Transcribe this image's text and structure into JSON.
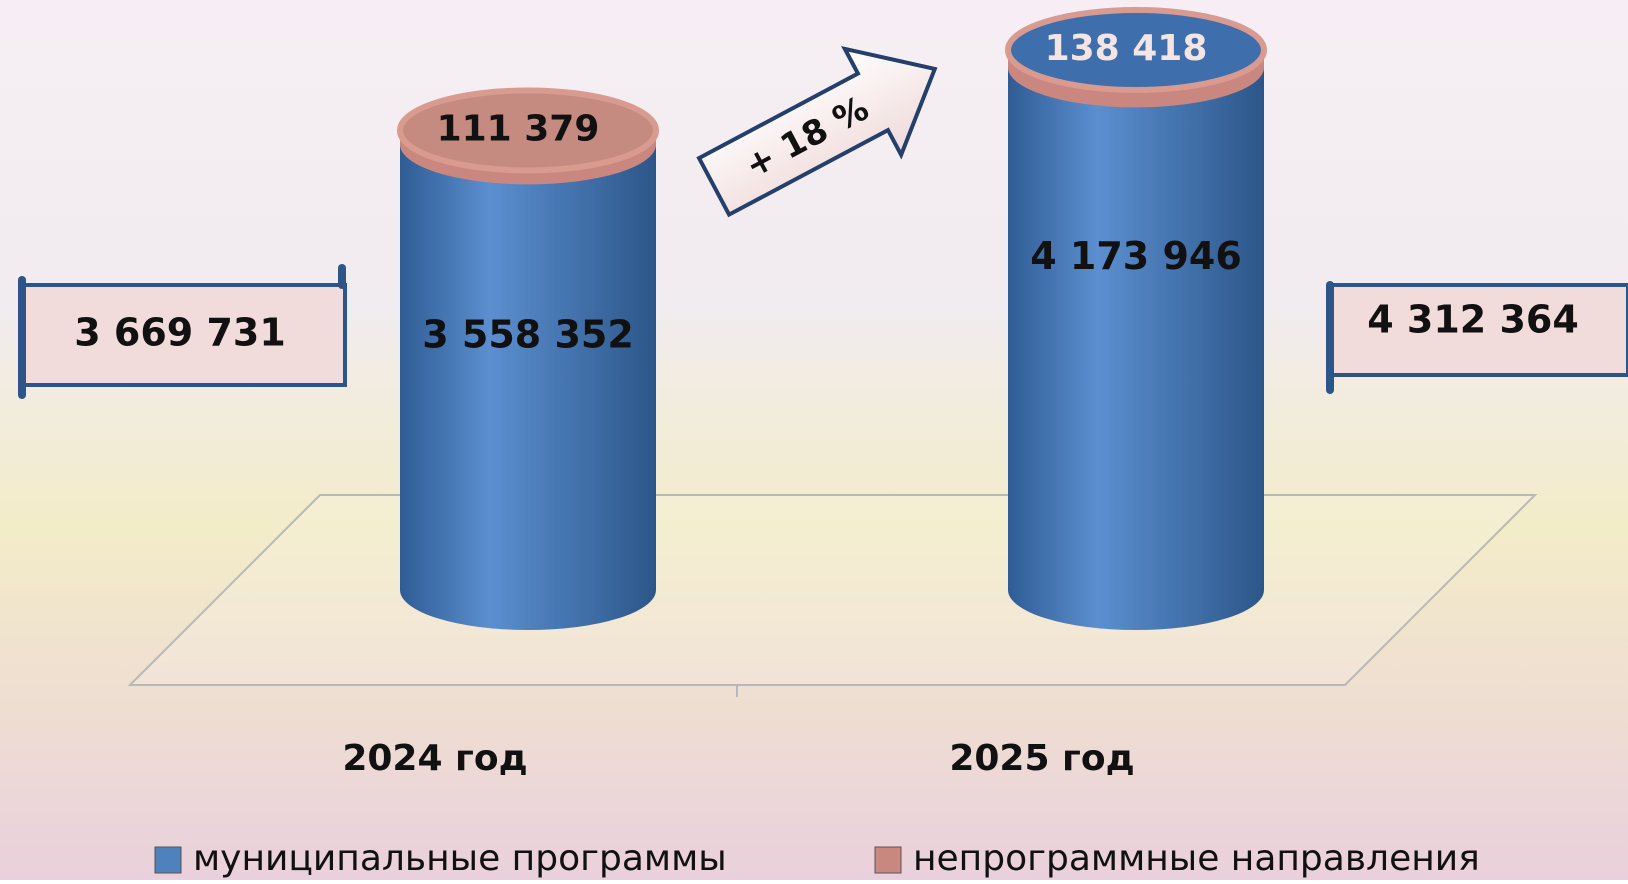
{
  "chart_data": {
    "type": "cylinder-stacked",
    "categories": [
      "2024 год",
      "2025 год"
    ],
    "series": [
      {
        "name": "муниципальные программы",
        "color": "#4f81bd",
        "values": [
          3558352,
          4173946
        ],
        "value_labels": [
          "3 558 352",
          "4 173 946"
        ]
      },
      {
        "name": "непрограммные направления",
        "color": "#c9877f",
        "values": [
          111379,
          138418
        ],
        "value_labels": [
          "111 379",
          "138 418"
        ]
      }
    ],
    "totals": {
      "values": [
        3669731,
        4312364
      ],
      "value_labels": [
        "3 669 731",
        "4 312 364"
      ]
    },
    "annotation": "+ 18 %"
  }
}
